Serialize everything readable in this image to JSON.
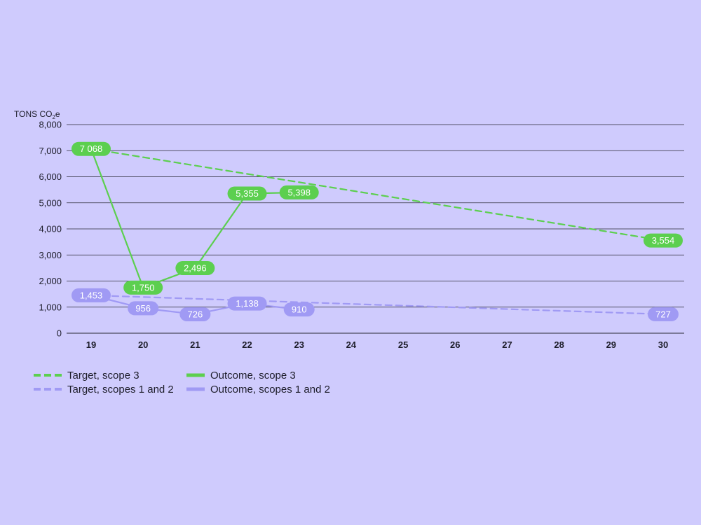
{
  "chart_data": {
    "type": "line",
    "ylabel": "TONS CO2e",
    "ylabel_parts": {
      "main": "TONS CO",
      "sub": "2",
      "tail": "e"
    },
    "ylim": [
      0,
      8000
    ],
    "yticks": [
      0,
      1000,
      2000,
      3000,
      4000,
      5000,
      6000,
      7000,
      8000
    ],
    "ytick_labels": [
      "0",
      "1,000",
      "2,000",
      "3,000",
      "4,000",
      "5,000",
      "6,000",
      "7,000",
      "8,000"
    ],
    "x": [
      19,
      20,
      21,
      22,
      23,
      24,
      25,
      26,
      27,
      28,
      29,
      30
    ],
    "xtick_labels": [
      "19",
      "20",
      "21",
      "22",
      "23",
      "24",
      "25",
      "26",
      "27",
      "28",
      "29",
      "30"
    ],
    "grid": true,
    "series": [
      {
        "name": "Target, scope 3",
        "style": "dashed",
        "color": "#5ccf4f",
        "x": [
          19,
          30
        ],
        "values": [
          7068,
          3554
        ]
      },
      {
        "name": "Target, scopes 1 and 2",
        "style": "dashed",
        "color": "#a09af4",
        "x": [
          19,
          30
        ],
        "values": [
          1453,
          727
        ]
      },
      {
        "name": "Outcome, scope 3",
        "style": "solid",
        "color": "#5ccf4f",
        "x": [
          19,
          20,
          21,
          22,
          23
        ],
        "values": [
          7068,
          1750,
          2496,
          5355,
          5398
        ]
      },
      {
        "name": "Outcome, scopes 1 and 2",
        "style": "solid",
        "color": "#a09af4",
        "x": [
          19,
          20,
          21,
          22,
          23
        ],
        "values": [
          1453,
          956,
          726,
          1138,
          910
        ]
      }
    ],
    "data_labels": [
      {
        "x": 19,
        "y": 7068,
        "text": "7 068",
        "color": "#5ccf4f"
      },
      {
        "x": 20,
        "y": 1750,
        "text": "1,750",
        "color": "#5ccf4f"
      },
      {
        "x": 21,
        "y": 2496,
        "text": "2,496",
        "color": "#5ccf4f"
      },
      {
        "x": 22,
        "y": 5355,
        "text": "5,355",
        "color": "#5ccf4f"
      },
      {
        "x": 23,
        "y": 5398,
        "text": "5,398",
        "color": "#5ccf4f"
      },
      {
        "x": 30,
        "y": 3554,
        "text": "3,554",
        "color": "#5ccf4f"
      },
      {
        "x": 19,
        "y": 1453,
        "text": "1,453",
        "color": "#a09af4"
      },
      {
        "x": 20,
        "y": 956,
        "text": "956",
        "color": "#a09af4"
      },
      {
        "x": 21,
        "y": 726,
        "text": "726",
        "color": "#a09af4"
      },
      {
        "x": 22,
        "y": 1138,
        "text": "1,138",
        "color": "#a09af4"
      },
      {
        "x": 23,
        "y": 910,
        "text": "910",
        "color": "#a09af4"
      },
      {
        "x": 30,
        "y": 727,
        "text": "727",
        "color": "#a09af4"
      }
    ],
    "legend_position": "bottom-left"
  },
  "legend": {
    "target_scope3": "Target, scope 3",
    "outcome_scope3": "Outcome, scope 3",
    "target_scope12": "Target, scopes 1 and 2",
    "outcome_scope12": "Outcome, scopes 1 and 2"
  },
  "colors": {
    "background": "#cfcbfd",
    "green": "#5ccf4f",
    "purple": "#a09af4",
    "axis": "#2a2a35"
  }
}
